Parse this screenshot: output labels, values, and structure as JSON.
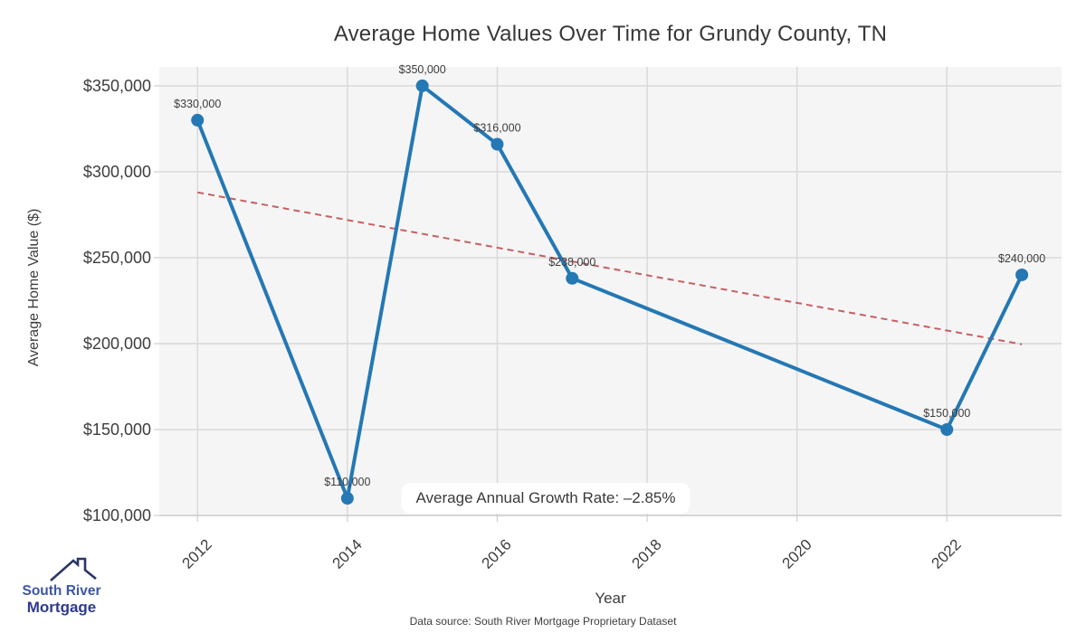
{
  "title": "Average Home Values Over Time for Grundy County, TN",
  "axes": {
    "x_label": "Year",
    "y_label": "Average Home Value ($)"
  },
  "annotation": {
    "text": "Average Annual Growth Rate: –2.85%"
  },
  "footer": {
    "text": "Data source: South River Mortgage Proprietary Dataset"
  },
  "logo": {
    "line1": "South River",
    "line2": "Mortgage",
    "icon": "house-roof-icon"
  },
  "chart_data": {
    "type": "line",
    "title": "Average Home Values Over Time for Grundy County, TN",
    "xlabel": "Year",
    "ylabel": "Average Home Value ($)",
    "x": [
      2012,
      2014,
      2015,
      2016,
      2017,
      2022,
      2023
    ],
    "values": [
      330000,
      110000,
      350000,
      316000,
      238000,
      150000,
      240000
    ],
    "point_labels": [
      "$330,000",
      "$110,000",
      "$350,000",
      "$316,000",
      "$238,000",
      "$150,000",
      "$240,000"
    ],
    "x_ticks": [
      2012,
      2014,
      2016,
      2018,
      2020,
      2022
    ],
    "x_tick_labels": [
      "2012",
      "2014",
      "2016",
      "2018",
      "2020",
      "2022"
    ],
    "y_ticks": [
      100000,
      150000,
      200000,
      250000,
      300000,
      350000
    ],
    "y_tick_labels": [
      "$100,000",
      "$150,000",
      "$200,000",
      "$250,000",
      "$300,000",
      "$350,000"
    ],
    "xlim": [
      2011.49,
      2023.53
    ],
    "ylim": [
      99500,
      361000
    ],
    "grid": true,
    "legend": "none",
    "line_color": "#2478b4",
    "marker_color": "#2478b4",
    "grid_color": "#d8d8d8",
    "plot_bg": "#f5f5f6",
    "trendline": {
      "style": "dashed",
      "color": "#c75f60",
      "x": [
        2012,
        2023
      ],
      "values": [
        288000,
        199600
      ]
    }
  }
}
